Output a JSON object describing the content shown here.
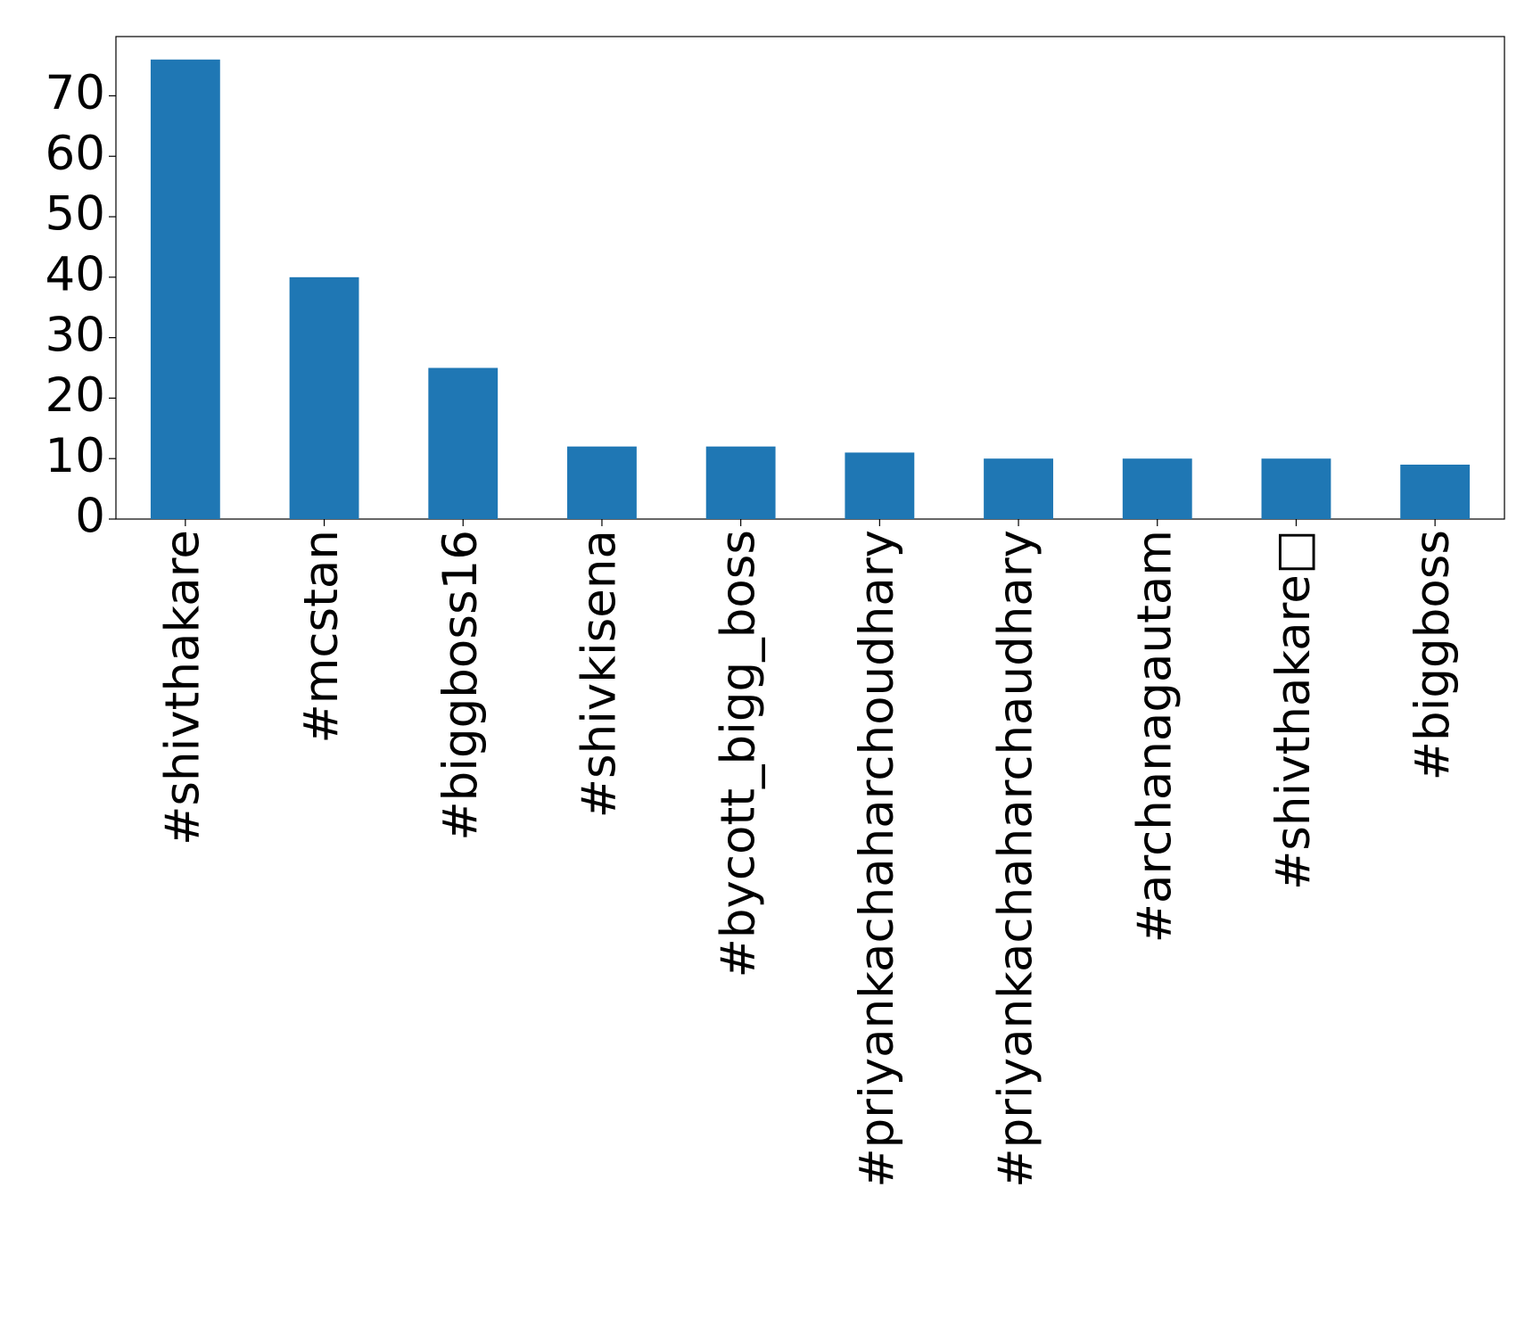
{
  "chart_data": {
    "type": "bar",
    "categories": [
      "#shivthakare",
      "#mcstan",
      "#biggboss16",
      "#shivkisena",
      "#bycott_bigg_boss",
      "#priyankachaharchoudhary",
      "#priyankachaharchaudhary",
      "#archanagautam",
      "#shivthakare□",
      "#biggboss"
    ],
    "values": [
      76,
      40,
      25,
      12,
      12,
      11,
      10,
      10,
      10,
      9
    ],
    "color": "#1f77b4",
    "ylim": [
      0,
      79.8
    ],
    "yticks": [
      0,
      10,
      20,
      30,
      40,
      50,
      60,
      70
    ],
    "grid": false
  }
}
